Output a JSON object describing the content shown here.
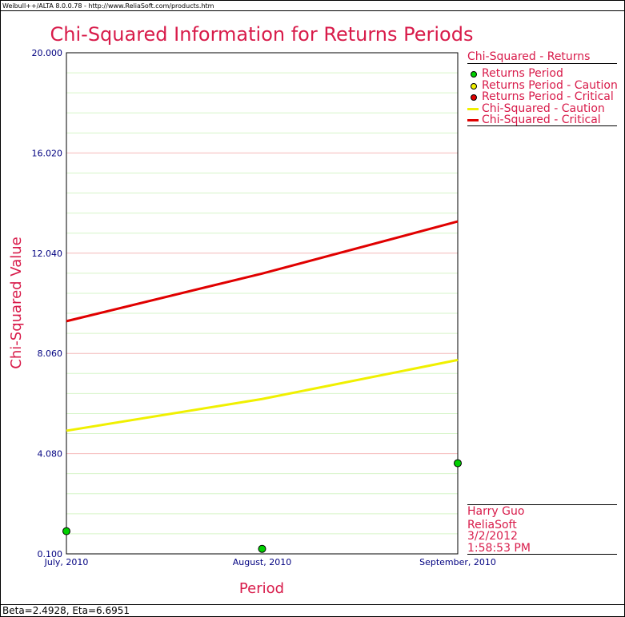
{
  "window": {
    "title": "Weibull++/ALTA 8.0.0.78 - http://www.ReliaSoft.com/products.htm"
  },
  "footer": {
    "params": "Beta=2.4928, Eta=6.6951"
  },
  "colors": {
    "title": "#d81b4a",
    "axis_text": "#000080",
    "major_grid": "#f4b8b8",
    "minor_grid": "#d6f5c8",
    "critical_line": "#e00000",
    "caution_line": "#f0f000",
    "point_fill": "#00d000"
  },
  "legend": {
    "title": "Chi-Squared - Returns",
    "items": [
      {
        "label": "Returns Period",
        "kind": "dot",
        "color": "#00d000"
      },
      {
        "label": "Returns Period - Caution",
        "kind": "dot",
        "color": "#f0f000"
      },
      {
        "label": "Returns Period - Critical",
        "kind": "dot",
        "color": "#e00000"
      },
      {
        "label": "Chi-Squared - Caution",
        "kind": "line",
        "color": "#f0f000"
      },
      {
        "label": "Chi-Squared - Critical",
        "kind": "line",
        "color": "#e00000"
      }
    ]
  },
  "author": {
    "name": "Harry Guo",
    "company": "ReliaSoft",
    "date": "3/2/2012",
    "time": "1:58:53 PM"
  },
  "chart_data": {
    "type": "scatter",
    "title": "Chi-Squared Information for Returns Periods",
    "xlabel": "Period",
    "ylabel": "Chi-Squared Value",
    "categories": [
      "July, 2010",
      "August, 2010",
      "September, 2010"
    ],
    "yticks": [
      "20.000",
      "16.020",
      "12.040",
      "8.060",
      "4.080",
      "0.100"
    ],
    "ylim": [
      0.1,
      20.0
    ],
    "grid": true,
    "legend_position": "right",
    "series": [
      {
        "name": "Returns Period",
        "kind": "points",
        "values": [
          1.0,
          0.3,
          3.7
        ]
      },
      {
        "name": "Chi-Squared - Caution",
        "kind": "line",
        "values": [
          4.99,
          6.25,
          7.8
        ]
      },
      {
        "name": "Chi-Squared - Critical",
        "kind": "line",
        "values": [
          9.34,
          11.23,
          13.3
        ]
      }
    ]
  }
}
